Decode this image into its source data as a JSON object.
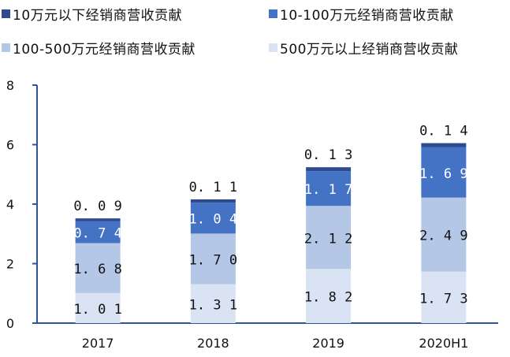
{
  "legend_colors": [
    "#2e4b8f",
    "#4472c4",
    "#b4c7e7",
    "#dae3f3"
  ],
  "chart_data": {
    "type": "bar",
    "stacked": true,
    "categories": [
      "2017",
      "2018",
      "2019",
      "2020H1"
    ],
    "series": [
      {
        "name": "500万元以上经销商营收贡献",
        "values": [
          1.01,
          1.31,
          1.82,
          1.73
        ],
        "labels": [
          "1.01",
          "1.31",
          "1.82",
          "1.73"
        ],
        "color": "#dae3f3"
      },
      {
        "name": "100-500万元经销商营收贡献",
        "values": [
          1.68,
          1.7,
          2.12,
          2.49
        ],
        "labels": [
          "1.68",
          "1.70",
          "2.12",
          "2.49"
        ],
        "color": "#b4c7e7"
      },
      {
        "name": "10-100万元经销商营收贡献",
        "values": [
          0.74,
          1.04,
          1.17,
          1.69
        ],
        "labels": [
          "0.74",
          "1.04",
          "1.17",
          "1.69"
        ],
        "color": "#4472c4"
      },
      {
        "name": "10万元以下经销商营收贡献",
        "values": [
          0.09,
          0.11,
          0.13,
          0.14
        ],
        "labels": [
          "0.09",
          "0.11",
          "0.13",
          "0.14"
        ],
        "color": "#2e4b8f"
      }
    ],
    "legend_order": [
      3,
      2,
      1,
      0
    ],
    "yticks": [
      "0",
      "2",
      "4",
      "6",
      "8"
    ],
    "ylim": [
      0,
      8
    ],
    "title": "",
    "xlabel": "",
    "ylabel": ""
  }
}
